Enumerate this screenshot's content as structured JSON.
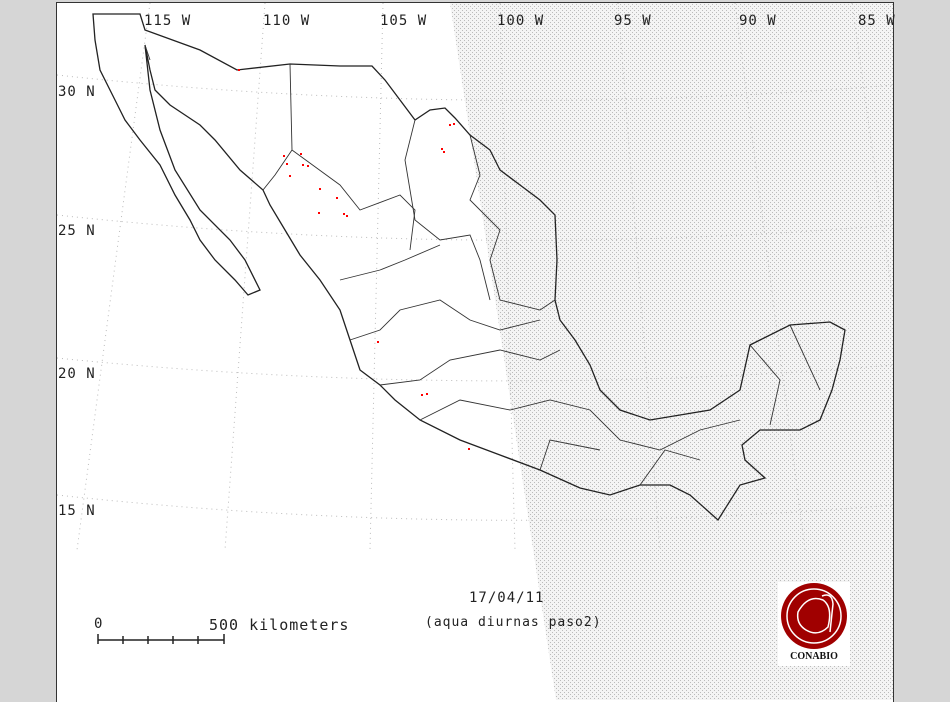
{
  "map": {
    "date": "17/04/11",
    "subtitle": "(aqua diurnas paso2)",
    "longitude_labels": [
      "115 W",
      "110 W",
      "105 W",
      "100 W",
      "95 W",
      "90 W",
      "85 W"
    ],
    "latitude_labels": [
      "30 N",
      "25 N",
      "20 N",
      "15 N"
    ],
    "scale_bar": {
      "start_label": "0",
      "end_label": "500 kilometers"
    },
    "logo": {
      "text": "CONABIO",
      "color": "#a00000"
    },
    "hotspot_color": "#ff0000",
    "night_shading": "stippled gray",
    "outline_color": "#222222"
  }
}
